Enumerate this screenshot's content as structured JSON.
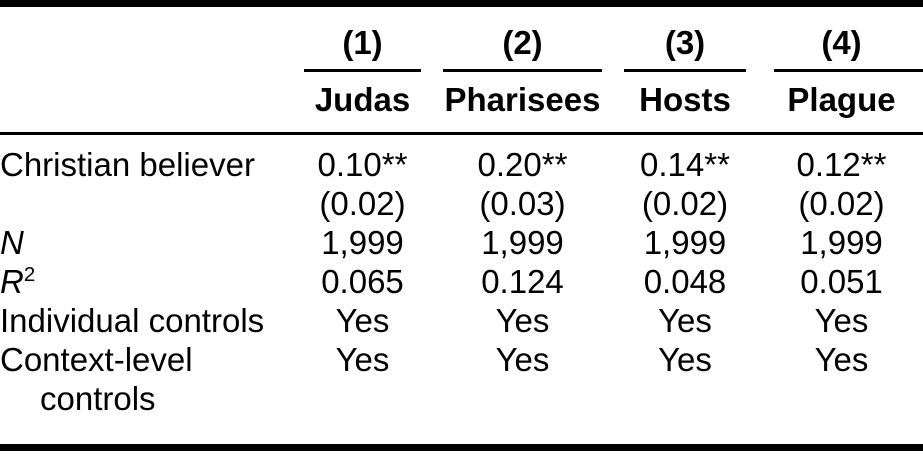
{
  "theme": {
    "text_color": "#000000",
    "background_color": "#ffffff",
    "rule_color": "#000000"
  },
  "table": {
    "column_numbers": [
      "(1)",
      "(2)",
      "(3)",
      "(4)"
    ],
    "column_names": [
      "Judas",
      "Pharisees",
      "Hosts",
      "Plague"
    ],
    "rows": {
      "coef": {
        "label": "Christian believer",
        "values": [
          "0.10**",
          "0.20**",
          "0.14**",
          "0.12**"
        ]
      },
      "se": {
        "label": "",
        "values": [
          "(0.02)",
          "(0.03)",
          "(0.02)",
          "(0.02)"
        ]
      },
      "n": {
        "label": "N",
        "values": [
          "1,999",
          "1,999",
          "1,999",
          "1,999"
        ]
      },
      "r2": {
        "label": "R",
        "label_sup": "2",
        "values": [
          "0.065",
          "0.124",
          "0.048",
          "0.051"
        ]
      },
      "individual_controls": {
        "label": "Individual controls",
        "values": [
          "Yes",
          "Yes",
          "Yes",
          "Yes"
        ]
      },
      "context_controls": {
        "label_line1": "Context-level",
        "label_line2": "controls",
        "values": [
          "Yes",
          "Yes",
          "Yes",
          "Yes"
        ]
      }
    }
  }
}
